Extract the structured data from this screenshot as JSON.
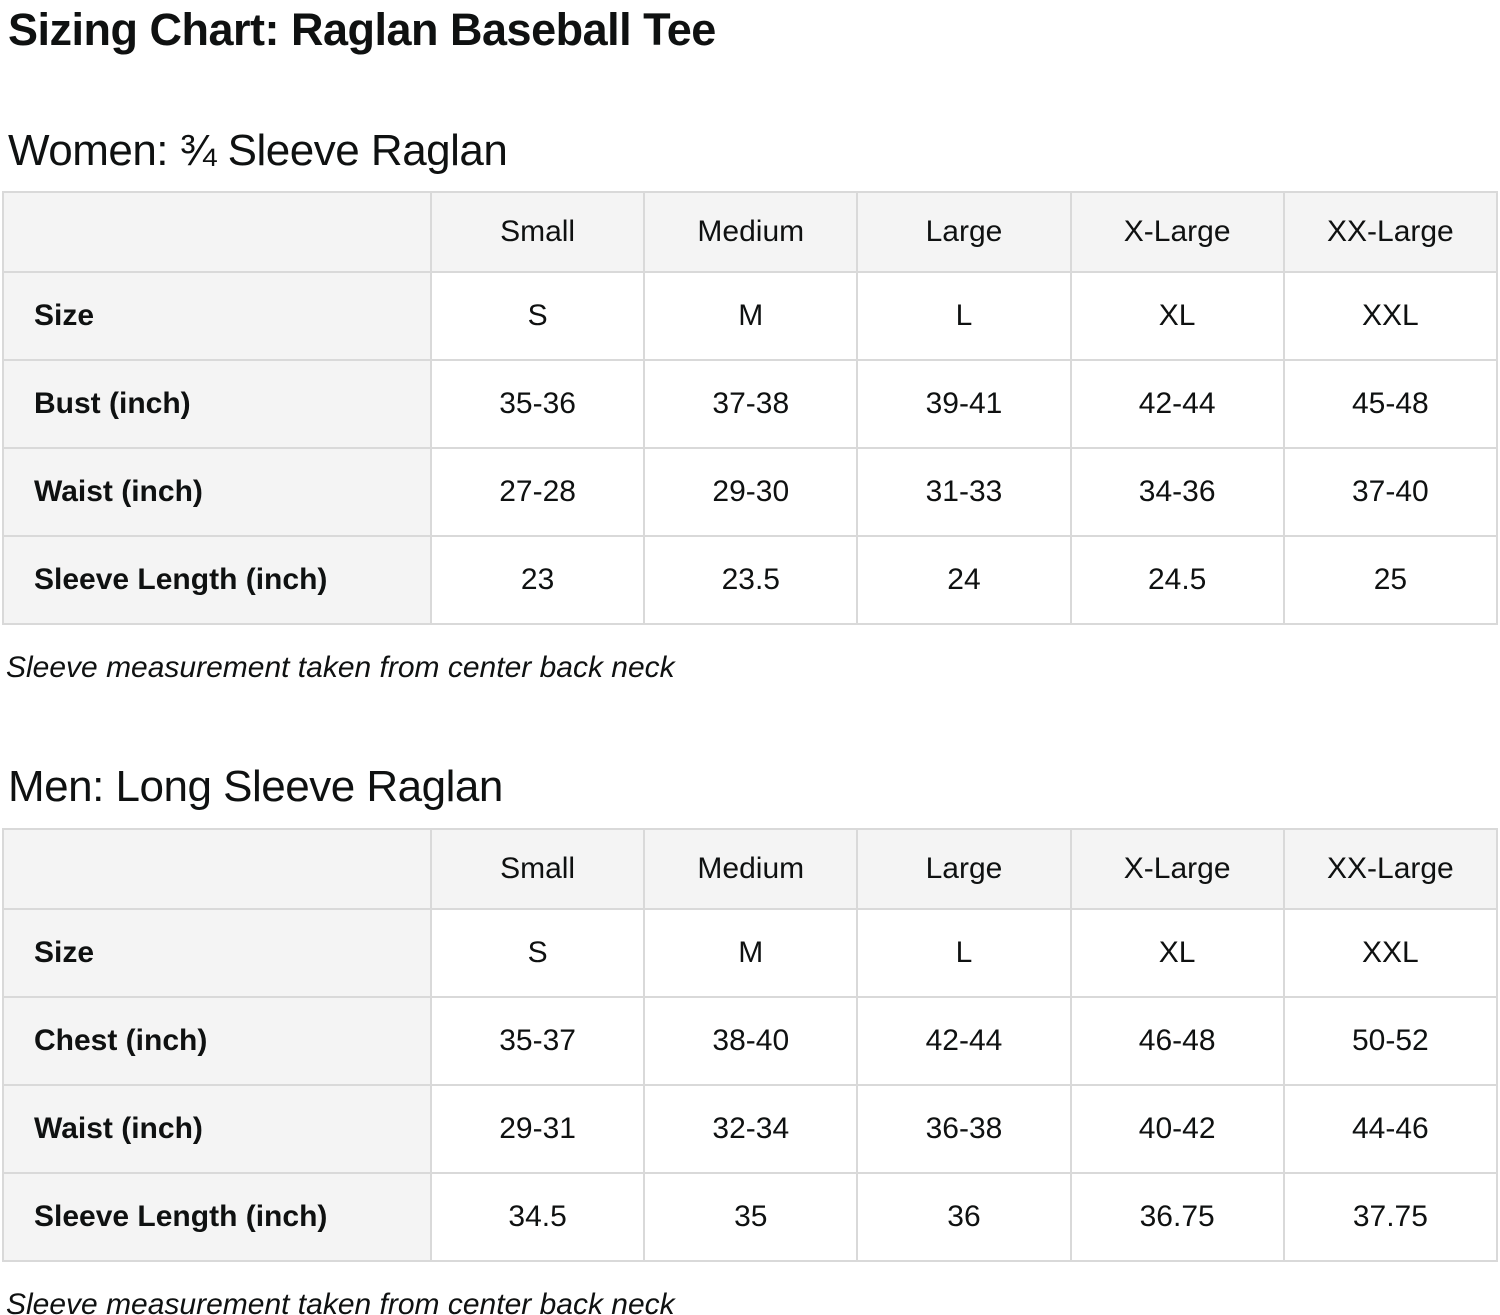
{
  "page": {
    "title": "Sizing Chart: Raglan Baseball Tee"
  },
  "colors": {
    "cell_background": "#f4f4f4",
    "border": "#d9d9d9",
    "text": "#0f1111",
    "page_background": "#ffffff"
  },
  "tables": [
    {
      "heading": "Women: ¾ Sleeve Raglan",
      "columns": [
        "Small",
        "Medium",
        "Large",
        "X-Large",
        "XX-Large"
      ],
      "rows": [
        {
          "label": "Size",
          "values": [
            "S",
            "M",
            "L",
            "XL",
            "XXL"
          ]
        },
        {
          "label": "Bust (inch)",
          "values": [
            "35-36",
            "37-38",
            "39-41",
            "42-44",
            "45-48"
          ]
        },
        {
          "label": "Waist (inch)",
          "values": [
            "27-28",
            "29-30",
            "31-33",
            "34-36",
            "37-40"
          ]
        },
        {
          "label": "Sleeve Length (inch)",
          "values": [
            "23",
            "23.5",
            "24",
            "24.5",
            "25"
          ]
        }
      ],
      "note": "Sleeve measurement taken from center back neck"
    },
    {
      "heading": "Men: Long Sleeve Raglan",
      "columns": [
        "Small",
        "Medium",
        "Large",
        "X-Large",
        "XX-Large"
      ],
      "rows": [
        {
          "label": "Size",
          "values": [
            "S",
            "M",
            "L",
            "XL",
            "XXL"
          ]
        },
        {
          "label": "Chest (inch)",
          "values": [
            "35-37",
            "38-40",
            "42-44",
            "46-48",
            "50-52"
          ]
        },
        {
          "label": "Waist (inch)",
          "values": [
            "29-31",
            "32-34",
            "36-38",
            "40-42",
            "44-46"
          ]
        },
        {
          "label": "Sleeve Length (inch)",
          "values": [
            "34.5",
            "35",
            "36",
            "36.75",
            "37.75"
          ]
        }
      ],
      "note": "Sleeve measurement taken from center back neck"
    }
  ]
}
